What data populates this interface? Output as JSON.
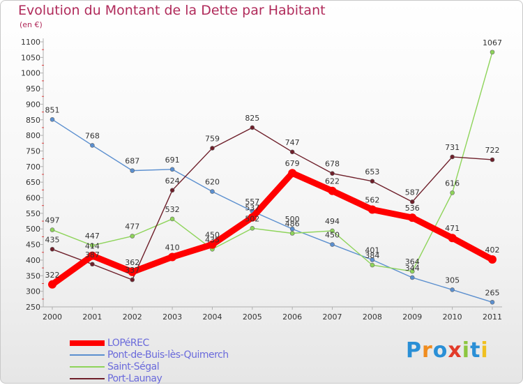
{
  "header": {
    "title": "Evolution du Montant de la Dette par Habitant",
    "subtitle": "(en €)"
  },
  "logo": {
    "text": "Proxiti",
    "colors": [
      "#2a8fd6",
      "#f08c1e",
      "#2a8fd6",
      "#e23b2a",
      "#8cc63f",
      "#2a8fd6",
      "#f0c020"
    ]
  },
  "chart_data": {
    "type": "line",
    "title": "Evolution du Montant de la Dette par Habitant",
    "subtitle": "(en €)",
    "x": [
      "2000",
      "2001",
      "2002",
      "2003",
      "2004",
      "2005",
      "2006",
      "2007",
      "2008",
      "2009",
      "2010",
      "2011"
    ],
    "yticks": [
      250,
      300,
      350,
      400,
      450,
      500,
      550,
      600,
      650,
      700,
      750,
      800,
      850,
      900,
      950,
      1000,
      1050,
      1100
    ],
    "ylim": [
      250,
      1100
    ],
    "grid": false,
    "legend_position": "bottom-left",
    "series": [
      {
        "name": "LOPéREC",
        "color": "#ff0000",
        "values": [
          322,
          414,
          362,
          410,
          450,
          537,
          679,
          622,
          562,
          536,
          471,
          402
        ]
      },
      {
        "name": "Pont-de-Buis-lès-Quimerch",
        "color": "#5b8fcf",
        "values": [
          851,
          768,
          687,
          691,
          620,
          557,
          500,
          450,
          401,
          344,
          305,
          265
        ]
      },
      {
        "name": "Saint-Ségal",
        "color": "#8ed45a",
        "values": [
          497,
          447,
          477,
          532,
          435,
          502,
          486,
          494,
          384,
          364,
          616,
          1067
        ]
      },
      {
        "name": "Port-Launay",
        "color": "#6e1f2a",
        "values": [
          435,
          387,
          337,
          624,
          759,
          825,
          747,
          678,
          653,
          587,
          731,
          722
        ]
      }
    ]
  }
}
